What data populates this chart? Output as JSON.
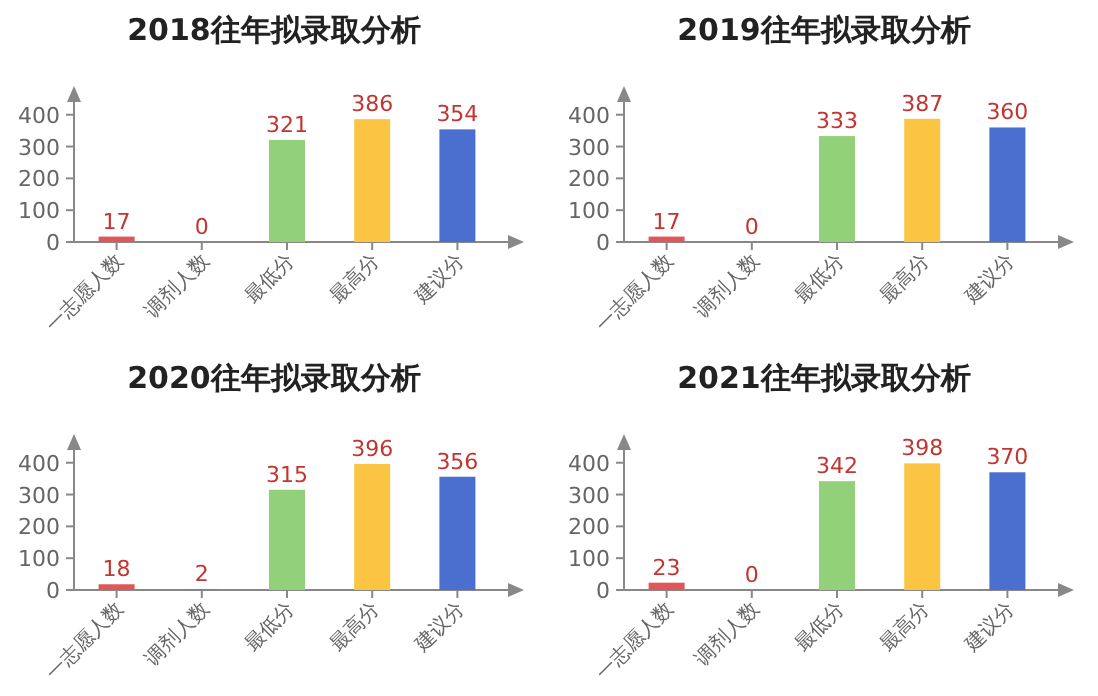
{
  "chart_data": [
    {
      "type": "bar",
      "title": "2018往年拟录取分析",
      "categories": [
        "一志愿人数",
        "调剂人数",
        "最低分",
        "最高分",
        "建议分"
      ],
      "values": [
        17,
        0,
        321,
        386,
        354
      ],
      "colors": [
        "#e15759",
        "#e15759",
        "#93d07a",
        "#fbc543",
        "#4a6fcf"
      ],
      "ylim": [
        0,
        440
      ],
      "yticks": [
        0,
        100,
        200,
        300,
        400
      ],
      "data_labels": true
    },
    {
      "type": "bar",
      "title": "2019往年拟录取分析",
      "categories": [
        "一志愿人数",
        "调剂人数",
        "最低分",
        "最高分",
        "建议分"
      ],
      "values": [
        17,
        0,
        333,
        387,
        360
      ],
      "colors": [
        "#e15759",
        "#e15759",
        "#93d07a",
        "#fbc543",
        "#4a6fcf"
      ],
      "ylim": [
        0,
        440
      ],
      "yticks": [
        0,
        100,
        200,
        300,
        400
      ],
      "data_labels": true
    },
    {
      "type": "bar",
      "title": "2020往年拟录取分析",
      "categories": [
        "一志愿人数",
        "调剂人数",
        "最低分",
        "最高分",
        "建议分"
      ],
      "values": [
        18,
        2,
        315,
        396,
        356
      ],
      "colors": [
        "#e15759",
        "#e15759",
        "#93d07a",
        "#fbc543",
        "#4a6fcf"
      ],
      "ylim": [
        0,
        440
      ],
      "yticks": [
        0,
        100,
        200,
        300,
        400
      ],
      "data_labels": true
    },
    {
      "type": "bar",
      "title": "2021往年拟录取分析",
      "categories": [
        "一志愿人数",
        "调剂人数",
        "最低分",
        "最高分",
        "建议分"
      ],
      "values": [
        23,
        0,
        342,
        398,
        370
      ],
      "colors": [
        "#e15759",
        "#e15759",
        "#93d07a",
        "#fbc543",
        "#4a6fcf"
      ],
      "ylim": [
        0,
        440
      ],
      "yticks": [
        0,
        100,
        200,
        300,
        400
      ],
      "data_labels": true
    }
  ]
}
